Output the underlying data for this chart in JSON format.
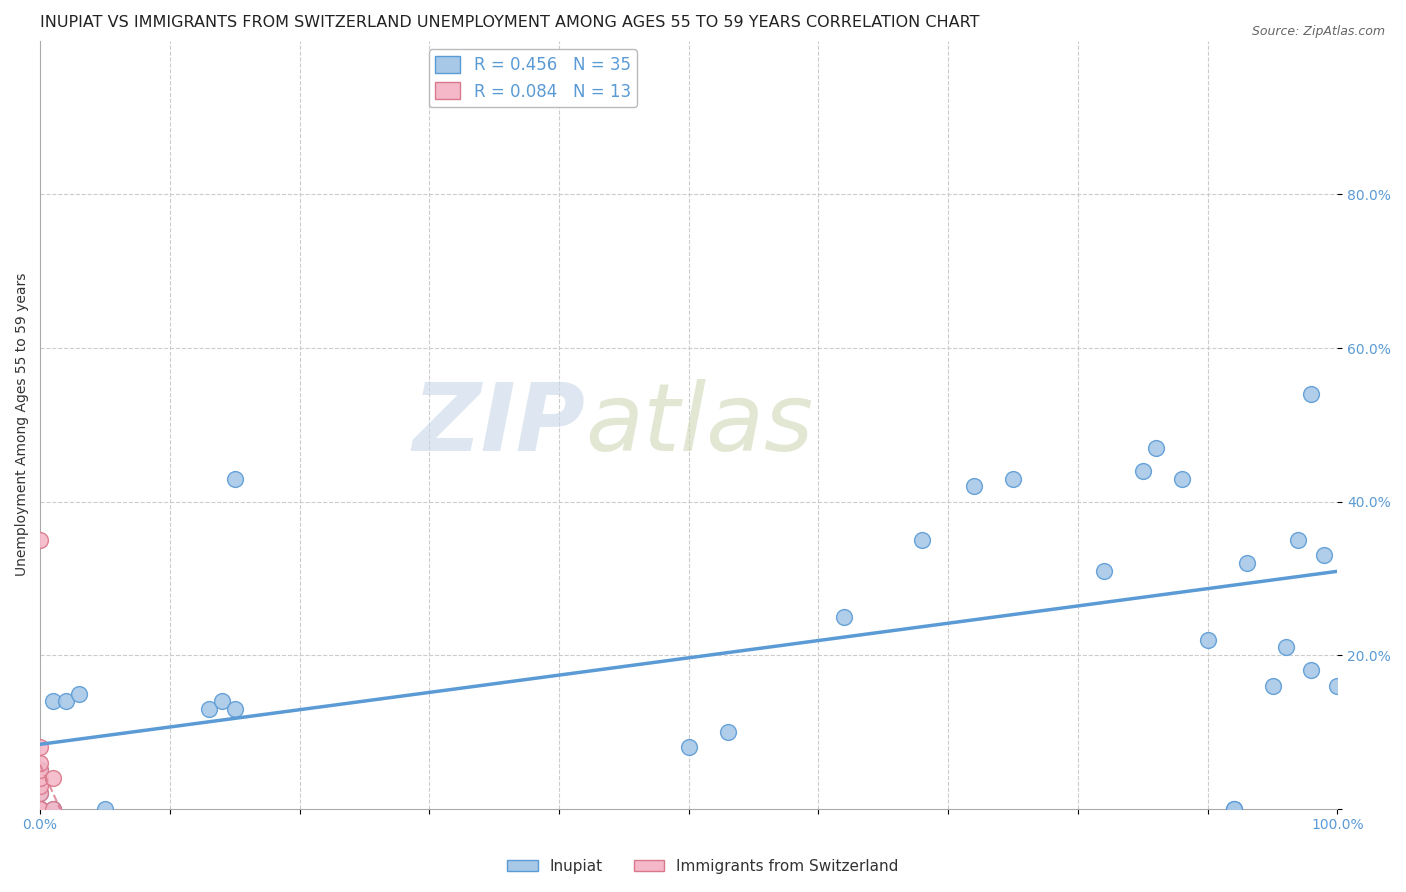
{
  "title": "INUPIAT VS IMMIGRANTS FROM SWITZERLAND UNEMPLOYMENT AMONG AGES 55 TO 59 YEARS CORRELATION CHART",
  "source": "Source: ZipAtlas.com",
  "ylabel": "Unemployment Among Ages 55 to 59 years",
  "xlabel": "",
  "xlim": [
    0,
    1.0
  ],
  "ylim": [
    0,
    1.0
  ],
  "inupiat_color": "#a8c8e8",
  "inupiat_edge_color": "#5b9bd5",
  "switzerland_color": "#f4b8c8",
  "switzerland_edge_color": "#d9788a",
  "inupiat_R": 0.456,
  "inupiat_N": 35,
  "switzerland_R": 0.084,
  "switzerland_N": 13,
  "watermark_left": "ZIP",
  "watermark_right": "atlas",
  "inupiat_x": [
    0.0,
    0.0,
    0.0,
    0.0,
    0.0,
    0.01,
    0.01,
    0.02,
    0.03,
    0.05,
    0.13,
    0.14,
    0.15,
    0.15,
    0.5,
    0.53,
    0.62,
    0.68,
    0.72,
    0.75,
    0.82,
    0.85,
    0.86,
    0.88,
    0.9,
    0.92,
    0.92,
    0.93,
    0.95,
    0.96,
    0.97,
    0.98,
    0.98,
    0.99,
    1.0
  ],
  "inupiat_y": [
    0.0,
    0.0,
    0.0,
    0.02,
    0.05,
    0.0,
    0.14,
    0.14,
    0.15,
    0.0,
    0.13,
    0.14,
    0.13,
    0.43,
    0.08,
    0.1,
    0.25,
    0.35,
    0.42,
    0.43,
    0.31,
    0.44,
    0.47,
    0.43,
    0.22,
    0.0,
    0.0,
    0.32,
    0.16,
    0.21,
    0.35,
    0.54,
    0.18,
    0.33,
    0.16
  ],
  "switzerland_x": [
    0.0,
    0.0,
    0.0,
    0.0,
    0.0,
    0.0,
    0.0,
    0.0,
    0.0,
    0.0,
    0.0,
    0.01,
    0.01
  ],
  "switzerland_y": [
    0.0,
    0.0,
    0.0,
    0.0,
    0.02,
    0.03,
    0.04,
    0.05,
    0.06,
    0.08,
    0.35,
    0.0,
    0.04
  ],
  "background_color": "#ffffff",
  "grid_color": "#cccccc",
  "title_fontsize": 11.5,
  "axis_label_fontsize": 10,
  "tick_fontsize": 10,
  "legend_fontsize": 12,
  "marker_size": 130
}
